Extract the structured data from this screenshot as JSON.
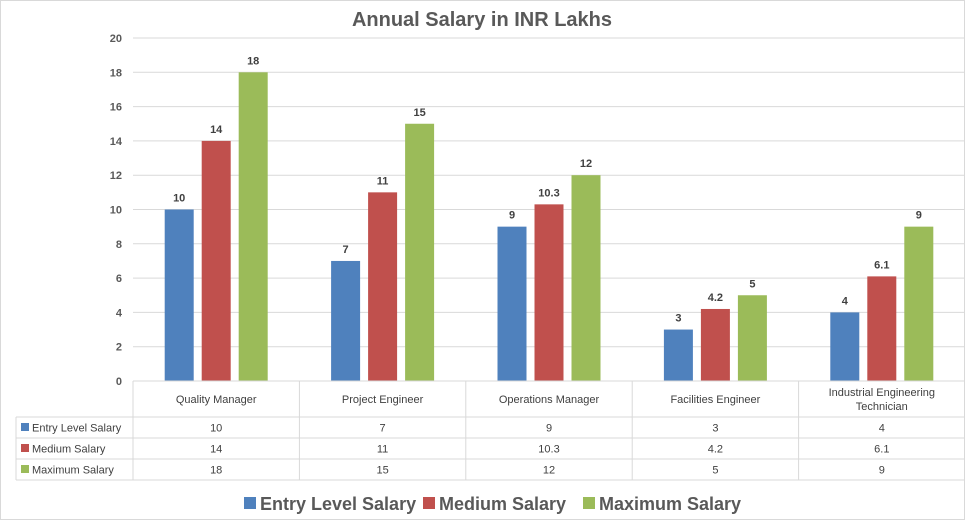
{
  "chart_data": {
    "type": "bar",
    "title": "Annual Salary in INR Lakhs",
    "categories": [
      "Quality Manager",
      "Project Engineer",
      "Operations Manager",
      "Facilities Engineer",
      "Industrial Engineering Technician"
    ],
    "category_lines": [
      [
        "Quality Manager"
      ],
      [
        "Project Engineer"
      ],
      [
        "Operations Manager"
      ],
      [
        "Facilities Engineer"
      ],
      [
        "Industrial Engineering",
        "Technician"
      ]
    ],
    "series": [
      {
        "name": "Entry Level Salary",
        "color": "#4f81bd",
        "values": [
          10,
          7,
          9,
          3,
          4
        ],
        "labels": [
          "10",
          "7",
          "9",
          "3",
          "4"
        ]
      },
      {
        "name": "Medium Salary",
        "color": "#c0504d",
        "values": [
          14,
          11,
          10.3,
          4.2,
          6.1
        ],
        "labels": [
          "14",
          "11",
          "10.3",
          "4.2",
          "6.1"
        ]
      },
      {
        "name": "Maximum Salary",
        "color": "#9bbb59",
        "values": [
          18,
          15,
          12,
          5,
          9
        ],
        "labels": [
          "18",
          "15",
          "12",
          "5",
          "9"
        ]
      }
    ],
    "ylim": [
      0,
      20
    ],
    "yticks": [
      "0",
      "2",
      "4",
      "6",
      "8",
      "10",
      "12",
      "14",
      "16",
      "18",
      "20"
    ],
    "xlabel": "",
    "ylabel": "",
    "grid": true,
    "legend": "bottom",
    "data_table": true
  }
}
